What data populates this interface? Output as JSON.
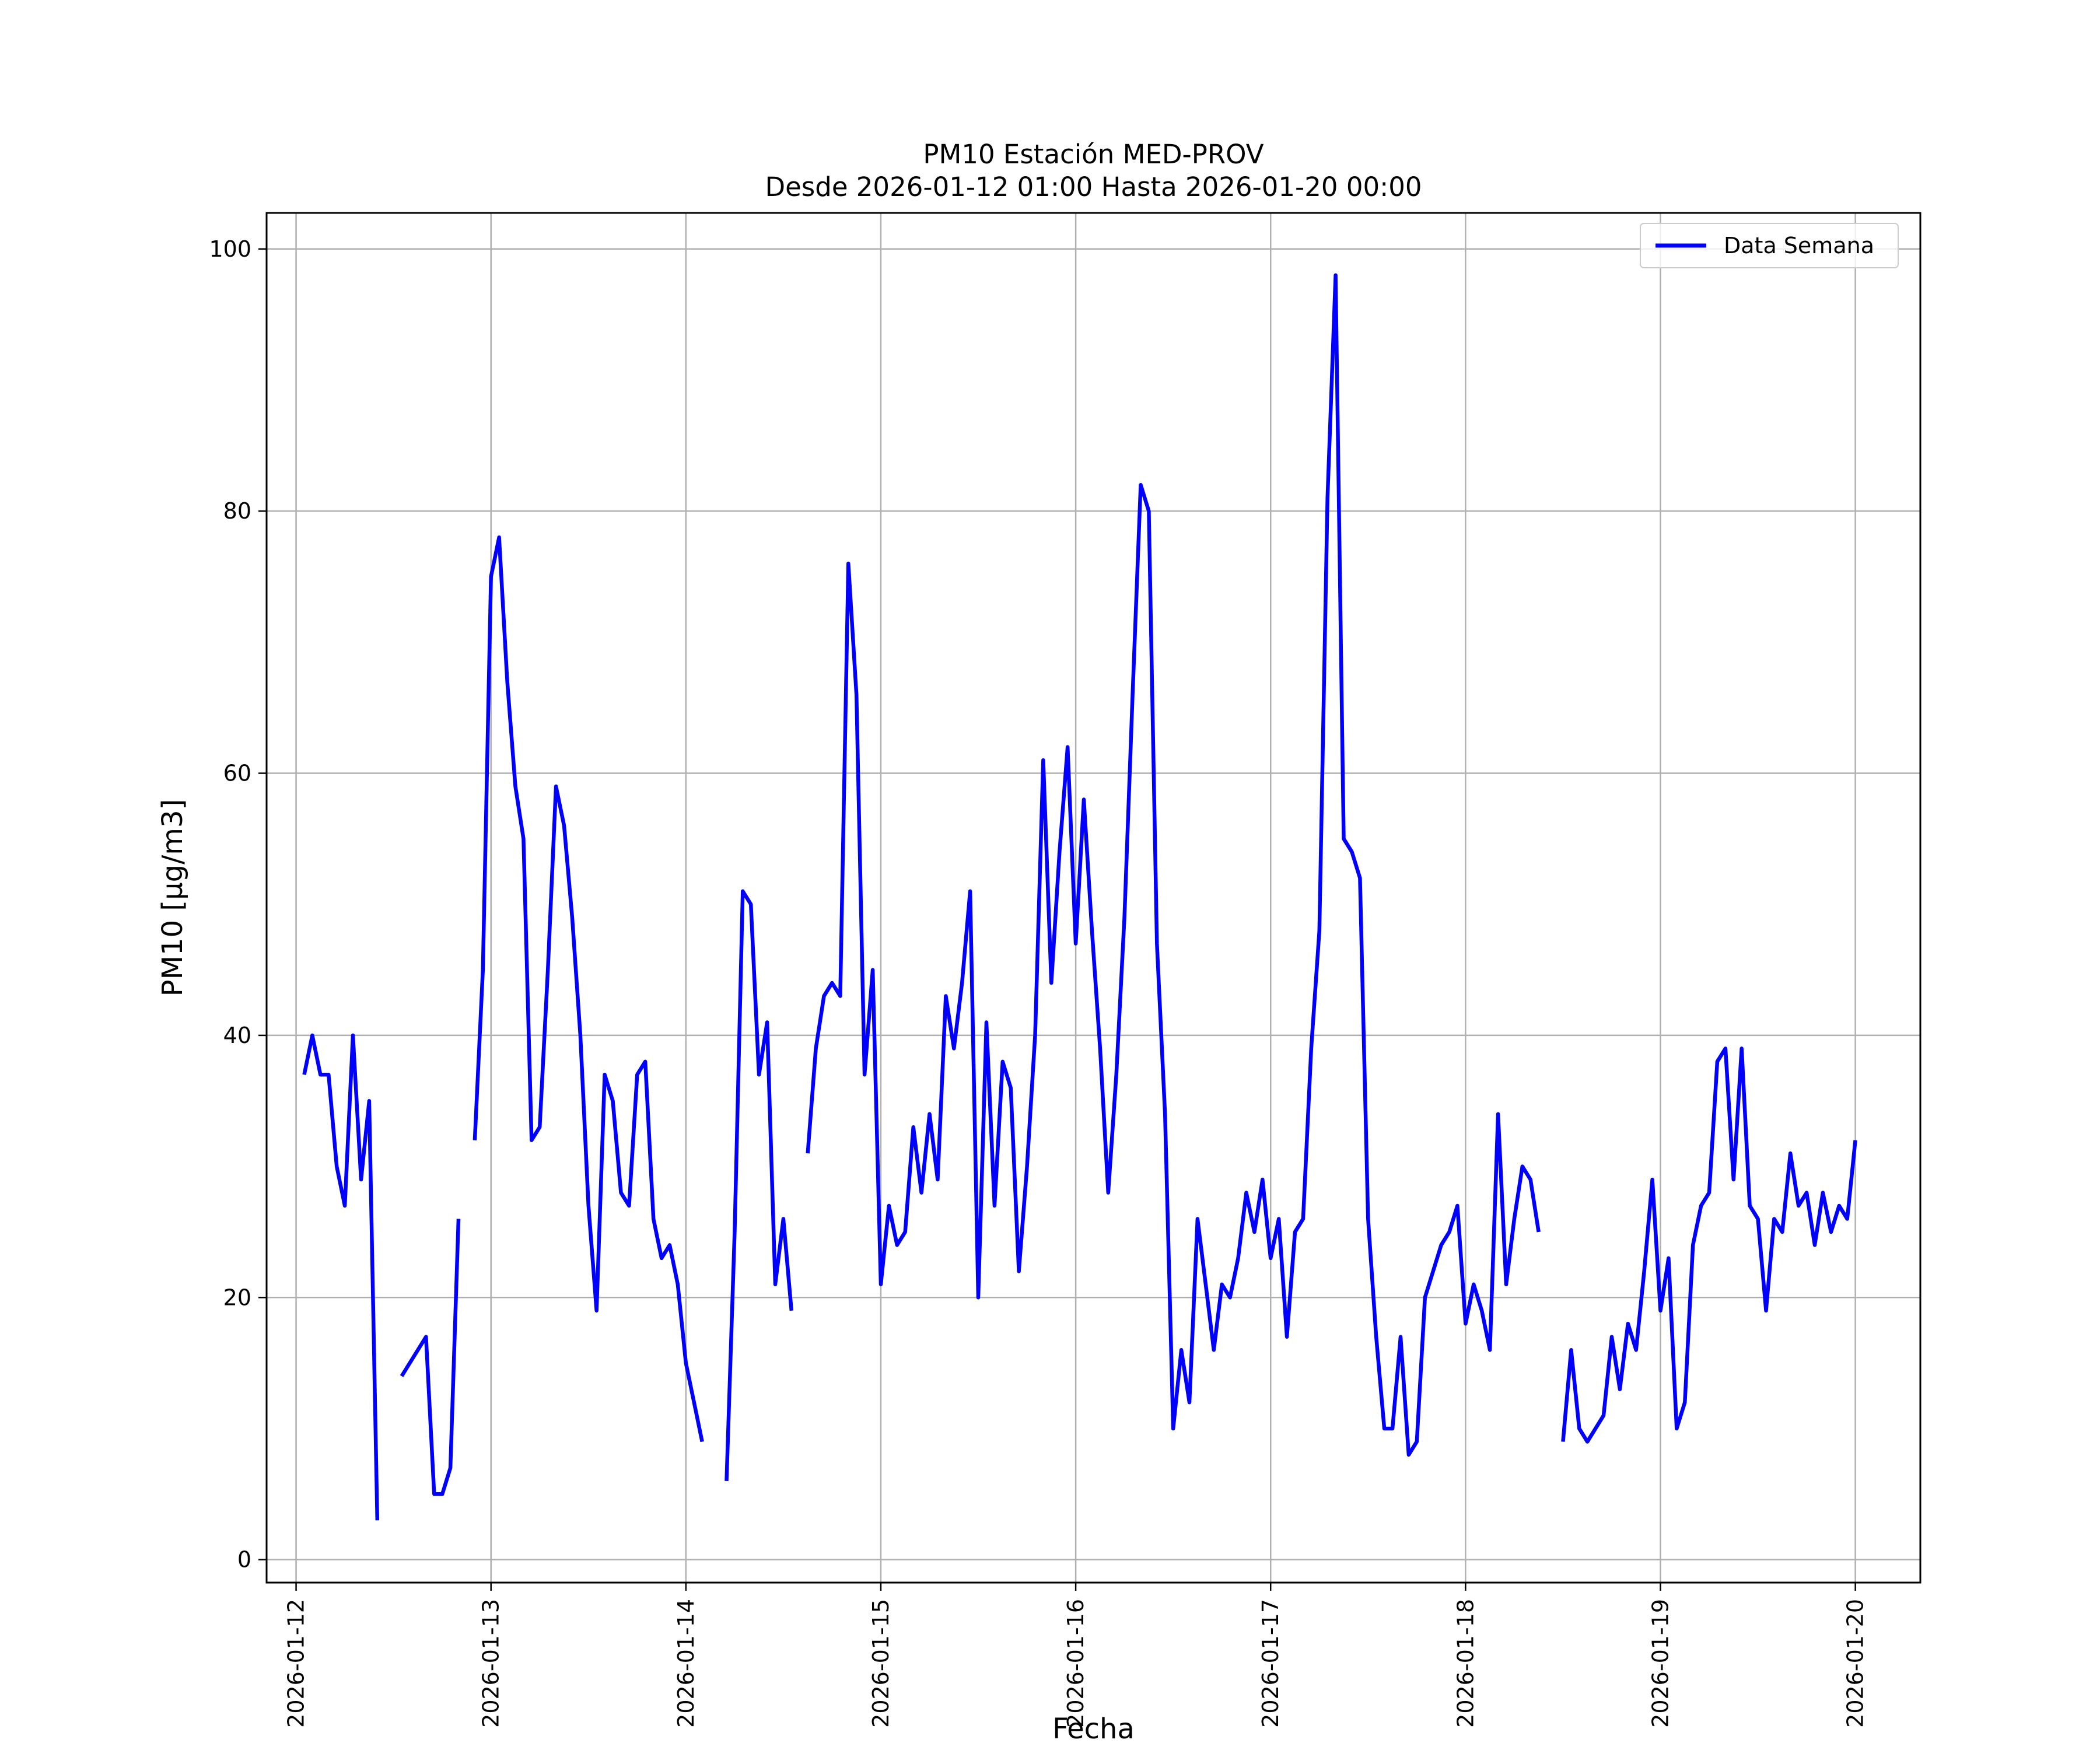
{
  "chart_data": {
    "type": "line",
    "title": "PM10 Estación MED-PROV",
    "subtitle": "Desde 2026-01-12 01:00 Hasta 2026-01-20 00:00",
    "xlabel": "Fecha",
    "ylabel": "PM10 [μg/m3]",
    "xlim": [
      "2026-01-11 20:22",
      "2026-01-20 08:00"
    ],
    "ylim": [
      -1.75,
      102.75
    ],
    "grid": true,
    "legend_position": "top-right",
    "x_ticks": [
      "2026-01-12",
      "2026-01-13",
      "2026-01-14",
      "2026-01-15",
      "2026-01-16",
      "2026-01-17",
      "2026-01-18",
      "2026-01-19",
      "2026-01-20"
    ],
    "y_ticks": [
      0,
      20,
      40,
      60,
      80,
      100
    ],
    "colors": {
      "line": "#0000ff",
      "grid": "#b0b0b0",
      "axes": "#000000"
    },
    "series": [
      {
        "name": "Data Semana",
        "points": [
          [
            "2026-01-12 01:00",
            37
          ],
          [
            "2026-01-12 02:00",
            40
          ],
          [
            "2026-01-12 03:00",
            37
          ],
          [
            "2026-01-12 04:00",
            37
          ],
          [
            "2026-01-12 05:00",
            30
          ],
          [
            "2026-01-12 06:00",
            27
          ],
          [
            "2026-01-12 07:00",
            40
          ],
          [
            "2026-01-12 08:00",
            29
          ],
          [
            "2026-01-12 09:00",
            35
          ],
          [
            "2026-01-12 10:00",
            3
          ],
          [
            "2026-01-12 11:00",
            null
          ],
          [
            "2026-01-12 12:00",
            null
          ],
          [
            "2026-01-12 13:00",
            14
          ],
          [
            "2026-01-12 14:00",
            15
          ],
          [
            "2026-01-12 15:00",
            16
          ],
          [
            "2026-01-12 16:00",
            17
          ],
          [
            "2026-01-12 17:00",
            5
          ],
          [
            "2026-01-12 18:00",
            5
          ],
          [
            "2026-01-12 19:00",
            7
          ],
          [
            "2026-01-12 20:00",
            26
          ],
          [
            "2026-01-12 21:00",
            null
          ],
          [
            "2026-01-12 22:00",
            32
          ],
          [
            "2026-01-12 23:00",
            45
          ],
          [
            "2026-01-13 00:00",
            75
          ],
          [
            "2026-01-13 01:00",
            78
          ],
          [
            "2026-01-13 02:00",
            67
          ],
          [
            "2026-01-13 03:00",
            59
          ],
          [
            "2026-01-13 04:00",
            55
          ],
          [
            "2026-01-13 05:00",
            32
          ],
          [
            "2026-01-13 06:00",
            33
          ],
          [
            "2026-01-13 07:00",
            45
          ],
          [
            "2026-01-13 08:00",
            59
          ],
          [
            "2026-01-13 09:00",
            56
          ],
          [
            "2026-01-13 10:00",
            49
          ],
          [
            "2026-01-13 11:00",
            40
          ],
          [
            "2026-01-13 12:00",
            27
          ],
          [
            "2026-01-13 13:00",
            19
          ],
          [
            "2026-01-13 14:00",
            37
          ],
          [
            "2026-01-13 15:00",
            35
          ],
          [
            "2026-01-13 16:00",
            28
          ],
          [
            "2026-01-13 17:00",
            27
          ],
          [
            "2026-01-13 18:00",
            37
          ],
          [
            "2026-01-13 19:00",
            38
          ],
          [
            "2026-01-13 20:00",
            26
          ],
          [
            "2026-01-13 21:00",
            23
          ],
          [
            "2026-01-13 22:00",
            24
          ],
          [
            "2026-01-13 23:00",
            21
          ],
          [
            "2026-01-14 00:00",
            15
          ],
          [
            "2026-01-14 01:00",
            12
          ],
          [
            "2026-01-14 02:00",
            9
          ],
          [
            "2026-01-14 03:00",
            null
          ],
          [
            "2026-01-14 04:00",
            null
          ],
          [
            "2026-01-14 05:00",
            6
          ],
          [
            "2026-01-14 06:00",
            25
          ],
          [
            "2026-01-14 07:00",
            51
          ],
          [
            "2026-01-14 08:00",
            50
          ],
          [
            "2026-01-14 09:00",
            37
          ],
          [
            "2026-01-14 10:00",
            41
          ],
          [
            "2026-01-14 11:00",
            21
          ],
          [
            "2026-01-14 12:00",
            26
          ],
          [
            "2026-01-14 13:00",
            19
          ],
          [
            "2026-01-14 14:00",
            null
          ],
          [
            "2026-01-14 15:00",
            31
          ],
          [
            "2026-01-14 16:00",
            39
          ],
          [
            "2026-01-14 17:00",
            43
          ],
          [
            "2026-01-14 18:00",
            44
          ],
          [
            "2026-01-14 19:00",
            43
          ],
          [
            "2026-01-14 20:00",
            76
          ],
          [
            "2026-01-14 21:00",
            66
          ],
          [
            "2026-01-14 22:00",
            37
          ],
          [
            "2026-01-14 23:00",
            45
          ],
          [
            "2026-01-15 00:00",
            21
          ],
          [
            "2026-01-15 01:00",
            27
          ],
          [
            "2026-01-15 02:00",
            24
          ],
          [
            "2026-01-15 03:00",
            25
          ],
          [
            "2026-01-15 04:00",
            33
          ],
          [
            "2026-01-15 05:00",
            28
          ],
          [
            "2026-01-15 06:00",
            34
          ],
          [
            "2026-01-15 07:00",
            29
          ],
          [
            "2026-01-15 08:00",
            43
          ],
          [
            "2026-01-15 09:00",
            39
          ],
          [
            "2026-01-15 10:00",
            44
          ],
          [
            "2026-01-15 11:00",
            51
          ],
          [
            "2026-01-15 12:00",
            20
          ],
          [
            "2026-01-15 13:00",
            41
          ],
          [
            "2026-01-15 14:00",
            27
          ],
          [
            "2026-01-15 15:00",
            38
          ],
          [
            "2026-01-15 16:00",
            36
          ],
          [
            "2026-01-15 17:00",
            22
          ],
          [
            "2026-01-15 18:00",
            30
          ],
          [
            "2026-01-15 19:00",
            40
          ],
          [
            "2026-01-15 20:00",
            61
          ],
          [
            "2026-01-15 21:00",
            44
          ],
          [
            "2026-01-15 22:00",
            54
          ],
          [
            "2026-01-15 23:00",
            62
          ],
          [
            "2026-01-16 00:00",
            47
          ],
          [
            "2026-01-16 01:00",
            58
          ],
          [
            "2026-01-16 02:00",
            48
          ],
          [
            "2026-01-16 03:00",
            39
          ],
          [
            "2026-01-16 04:00",
            28
          ],
          [
            "2026-01-16 05:00",
            37
          ],
          [
            "2026-01-16 06:00",
            49
          ],
          [
            "2026-01-16 07:00",
            66
          ],
          [
            "2026-01-16 08:00",
            82
          ],
          [
            "2026-01-16 09:00",
            80
          ],
          [
            "2026-01-16 10:00",
            47
          ],
          [
            "2026-01-16 11:00",
            34
          ],
          [
            "2026-01-16 12:00",
            10
          ],
          [
            "2026-01-16 13:00",
            16
          ],
          [
            "2026-01-16 14:00",
            12
          ],
          [
            "2026-01-16 15:00",
            26
          ],
          [
            "2026-01-16 16:00",
            21
          ],
          [
            "2026-01-16 17:00",
            16
          ],
          [
            "2026-01-16 18:00",
            21
          ],
          [
            "2026-01-16 19:00",
            20
          ],
          [
            "2026-01-16 20:00",
            23
          ],
          [
            "2026-01-16 21:00",
            28
          ],
          [
            "2026-01-16 22:00",
            25
          ],
          [
            "2026-01-16 23:00",
            29
          ],
          [
            "2026-01-17 00:00",
            23
          ],
          [
            "2026-01-17 01:00",
            26
          ],
          [
            "2026-01-17 02:00",
            17
          ],
          [
            "2026-01-17 03:00",
            25
          ],
          [
            "2026-01-17 04:00",
            26
          ],
          [
            "2026-01-17 05:00",
            39
          ],
          [
            "2026-01-17 06:00",
            48
          ],
          [
            "2026-01-17 07:00",
            81
          ],
          [
            "2026-01-17 08:00",
            98
          ],
          [
            "2026-01-17 09:00",
            55
          ],
          [
            "2026-01-17 10:00",
            54
          ],
          [
            "2026-01-17 11:00",
            52
          ],
          [
            "2026-01-17 12:00",
            26
          ],
          [
            "2026-01-17 13:00",
            17
          ],
          [
            "2026-01-17 14:00",
            10
          ],
          [
            "2026-01-17 15:00",
            10
          ],
          [
            "2026-01-17 16:00",
            17
          ],
          [
            "2026-01-17 17:00",
            8
          ],
          [
            "2026-01-17 18:00",
            9
          ],
          [
            "2026-01-17 19:00",
            20
          ],
          [
            "2026-01-17 20:00",
            22
          ],
          [
            "2026-01-17 21:00",
            24
          ],
          [
            "2026-01-17 22:00",
            25
          ],
          [
            "2026-01-17 23:00",
            27
          ],
          [
            "2026-01-18 00:00",
            18
          ],
          [
            "2026-01-18 01:00",
            21
          ],
          [
            "2026-01-18 02:00",
            19
          ],
          [
            "2026-01-18 03:00",
            16
          ],
          [
            "2026-01-18 04:00",
            34
          ],
          [
            "2026-01-18 05:00",
            21
          ],
          [
            "2026-01-18 06:00",
            26
          ],
          [
            "2026-01-18 07:00",
            30
          ],
          [
            "2026-01-18 08:00",
            29
          ],
          [
            "2026-01-18 09:00",
            25
          ],
          [
            "2026-01-18 10:00",
            null
          ],
          [
            "2026-01-18 11:00",
            null
          ],
          [
            "2026-01-18 12:00",
            9
          ],
          [
            "2026-01-18 13:00",
            16
          ],
          [
            "2026-01-18 14:00",
            10
          ],
          [
            "2026-01-18 15:00",
            9
          ],
          [
            "2026-01-18 16:00",
            10
          ],
          [
            "2026-01-18 17:00",
            11
          ],
          [
            "2026-01-18 18:00",
            17
          ],
          [
            "2026-01-18 19:00",
            13
          ],
          [
            "2026-01-18 20:00",
            18
          ],
          [
            "2026-01-18 21:00",
            16
          ],
          [
            "2026-01-18 22:00",
            22
          ],
          [
            "2026-01-18 23:00",
            29
          ],
          [
            "2026-01-19 00:00",
            19
          ],
          [
            "2026-01-19 01:00",
            23
          ],
          [
            "2026-01-19 02:00",
            10
          ],
          [
            "2026-01-19 03:00",
            12
          ],
          [
            "2026-01-19 04:00",
            24
          ],
          [
            "2026-01-19 05:00",
            27
          ],
          [
            "2026-01-19 06:00",
            28
          ],
          [
            "2026-01-19 07:00",
            38
          ],
          [
            "2026-01-19 08:00",
            39
          ],
          [
            "2026-01-19 09:00",
            29
          ],
          [
            "2026-01-19 10:00",
            39
          ],
          [
            "2026-01-19 11:00",
            27
          ],
          [
            "2026-01-19 12:00",
            26
          ],
          [
            "2026-01-19 13:00",
            19
          ],
          [
            "2026-01-19 14:00",
            26
          ],
          [
            "2026-01-19 15:00",
            25
          ],
          [
            "2026-01-19 16:00",
            31
          ],
          [
            "2026-01-19 17:00",
            27
          ],
          [
            "2026-01-19 18:00",
            28
          ],
          [
            "2026-01-19 19:00",
            24
          ],
          [
            "2026-01-19 20:00",
            28
          ],
          [
            "2026-01-19 21:00",
            25
          ],
          [
            "2026-01-19 22:00",
            27
          ],
          [
            "2026-01-19 23:00",
            26
          ],
          [
            "2026-01-20 00:00",
            32
          ]
        ]
      }
    ]
  }
}
